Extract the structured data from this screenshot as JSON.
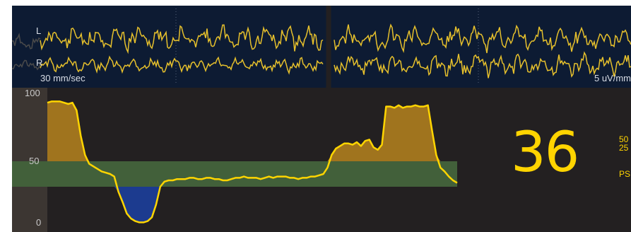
{
  "eeg": {
    "lead_left": "L",
    "lead_right": "R",
    "sweep_speed": "30 mm/sec",
    "gain": "5 uV/mm"
  },
  "trend": {
    "axis": {
      "top": "100",
      "mid": "50",
      "bottom": "0"
    },
    "target_range": [
      30,
      50
    ],
    "values": [
      96,
      97,
      97,
      97,
      96,
      95,
      96,
      90,
      70,
      55,
      48,
      46,
      44,
      42,
      41,
      40,
      38,
      26,
      18,
      9,
      5,
      3,
      2,
      2,
      3,
      6,
      16,
      30,
      34,
      35,
      35,
      36,
      36,
      36,
      37,
      37,
      36,
      36,
      37,
      37,
      36,
      36,
      35,
      35,
      36,
      37,
      37,
      38,
      37,
      37,
      37,
      36,
      37,
      38,
      37,
      38,
      38,
      38,
      37,
      37,
      36,
      37,
      37,
      38,
      38,
      39,
      40,
      45,
      55,
      60,
      62,
      64,
      64,
      63,
      65,
      62,
      66,
      67,
      61,
      59,
      63,
      93,
      93,
      92,
      94,
      92,
      93,
      93,
      94,
      93,
      93,
      94,
      74,
      55,
      45,
      42,
      38,
      35,
      33
    ],
    "colors": {
      "trace": "#ffd500",
      "above_fill": "#a0741e",
      "below_fill": "#1c3b8f",
      "target_band": "#42603a",
      "history_bg": "#3c3632"
    }
  },
  "readout": {
    "value": "36",
    "line1": "50",
    "line2": "25",
    "line3": "PS"
  }
}
